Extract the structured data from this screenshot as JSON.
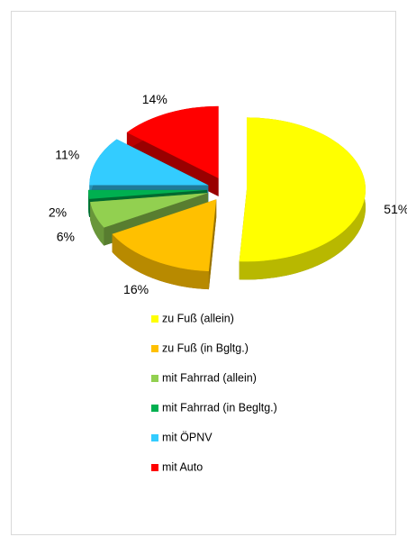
{
  "chart_data": {
    "type": "pie",
    "categories": [
      "zu Fuß (allein)",
      "zu Fuß (in Bgltg.)",
      "mit Fahrrad (allein)",
      "mit Fahrrad (in Begltg.)",
      "mit ÖPNV",
      "mit Auto"
    ],
    "values": [
      51,
      16,
      6,
      2,
      11,
      14
    ],
    "value_labels": [
      "51%",
      "16%",
      "6%",
      "2%",
      "11%",
      "14%"
    ],
    "colors": [
      "#FFFF00",
      "#FFC000",
      "#92D050",
      "#00B050",
      "#33CCFF",
      "#FF0000"
    ],
    "legend": "bottom"
  }
}
